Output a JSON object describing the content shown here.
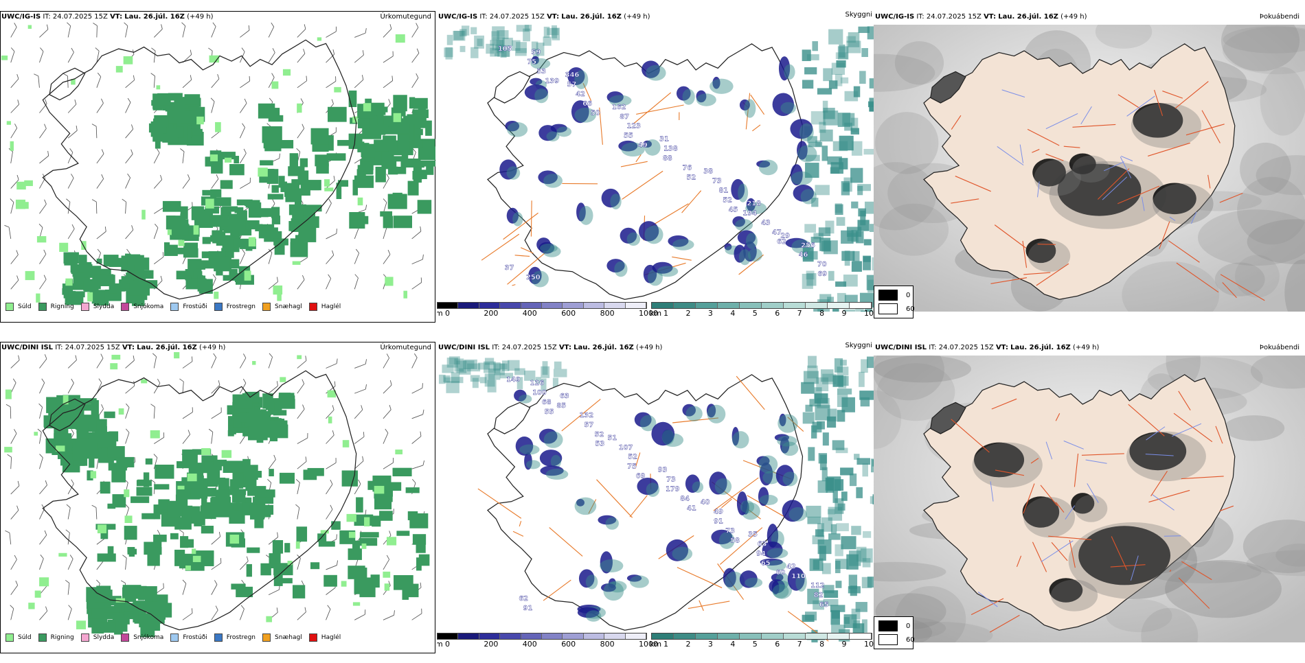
{
  "rows": [
    {
      "model": "UWC/IG-IS",
      "it_label": "IT:",
      "it_value": "24.07.2025 15Z",
      "vt_label": "VT:",
      "vt_value": "Lau. 26.júl. 16Z",
      "lead": "(+49 h)",
      "panel_titles": [
        "Úrkomutegund",
        "Skyggni",
        "Þokuábendi"
      ],
      "vis_labels": [
        "105",
        "139",
        "50",
        "49",
        "52",
        "45",
        "62",
        "69",
        "53",
        "66",
        "55",
        "76",
        "52",
        "47",
        "70",
        "75",
        "42",
        "123",
        "88",
        "81",
        "43",
        "46",
        "59",
        "57",
        "87",
        "138",
        "73",
        "194",
        "256",
        "250",
        "346",
        "162",
        "31",
        "38",
        "218",
        "29",
        "37"
      ]
    },
    {
      "model": "UWC/DINI ISL",
      "it_label": "IT:",
      "it_value": "24.07.2025 15Z",
      "vt_label": "VT:",
      "vt_value": "Lau. 26.júl. 16Z",
      "lead": "(+49 h)",
      "panel_titles": [
        "Úrkomutegund",
        "Skyggni",
        "Þokuábendi"
      ],
      "vis_labels": [
        "149",
        "55",
        "53",
        "69",
        "41",
        "58",
        "60",
        "65",
        "68",
        "52",
        "75",
        "84",
        "73",
        "65",
        "82",
        "100",
        "57",
        "52",
        "179",
        "91",
        "94",
        "112",
        "126",
        "132",
        "107",
        "73",
        "49",
        "63",
        "110",
        "91",
        "85",
        "51",
        "93",
        "40",
        "35",
        "42",
        "62",
        "63"
      ]
    }
  ],
  "precip_legend": [
    {
      "label": "Súld",
      "color": "#90ee90"
    },
    {
      "label": "Rigning",
      "color": "#3a9a5f"
    },
    {
      "label": "Slydda",
      "color": "#f4a6d0"
    },
    {
      "label": "Snjókoma",
      "color": "#c2489a"
    },
    {
      "label": "Frostúði",
      "color": "#9ec9f0"
    },
    {
      "label": "Frostregn",
      "color": "#3b78c4"
    },
    {
      "label": "Snæhagl",
      "color": "#f0a020"
    },
    {
      "label": "Haglél",
      "color": "#e01010"
    }
  ],
  "cbar_m": {
    "unit": "m",
    "ticks": [
      "0",
      "200",
      "400",
      "600",
      "800",
      "1000"
    ]
  },
  "cbar_km": {
    "unit": "km",
    "ticks": [
      "1",
      "2",
      "3",
      "4",
      "5",
      "6",
      "7",
      "8",
      "9",
      "10"
    ]
  },
  "fog_legend": {
    "values": [
      "0",
      "60"
    ]
  },
  "colors": {
    "rain": "#3a9a5f",
    "drizzle": "#90ee90",
    "vis_low": "#1a1a8c",
    "vis_teal": "#3a8f8a",
    "land": "#f3e3d5",
    "roads": "#e87a2a",
    "rivers": "#7a8ee8"
  }
}
